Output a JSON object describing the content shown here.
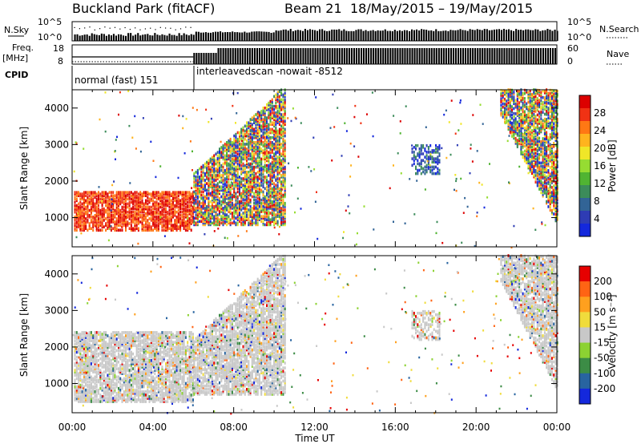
{
  "header": {
    "title": "Buckland Park (fitACF)",
    "beam": "Beam 21",
    "dates": "18/May/2015 – 19/May/2015"
  },
  "noise_panel": {
    "left_label": "N.Sky",
    "right_label": "N.Search",
    "left_ticks": [
      "10^5",
      "10^0"
    ],
    "right_ticks": [
      "10^5",
      "10^0"
    ]
  },
  "freq_panel": {
    "left_label_1": "Freq.",
    "left_label_2": "[MHz]",
    "left_ticks": [
      "18",
      "8"
    ],
    "right_label": "Nave",
    "right_ticks": [
      "60",
      "0"
    ]
  },
  "cpid": {
    "label": "CPID",
    "segments": [
      {
        "text": "normal (fast) 151",
        "start_hour": 0,
        "end_hour": 6
      },
      {
        "text": "interleavedscan -nowait -8512",
        "start_hour": 6,
        "end_hour": 24
      }
    ]
  },
  "x_axis": {
    "label": "Time UT",
    "ticks": [
      "00:00",
      "04:00",
      "08:00",
      "12:00",
      "16:00",
      "20:00",
      "00:00"
    ]
  },
  "chart_data": [
    {
      "type": "heatmap",
      "panel": "power",
      "ylabel": "Slant Range [km]",
      "y_ticks": [
        1000,
        2000,
        3000,
        4000
      ],
      "ylim": [
        200,
        4500
      ],
      "xlim": [
        0,
        24
      ],
      "colorbar_label": "Power [dB]",
      "colorbar_ticks": [
        4,
        8,
        12,
        16,
        20,
        24,
        28
      ],
      "colors": [
        "#1428dc",
        "#2e3cb4",
        "#326496",
        "#3c8c5a",
        "#50b432",
        "#96dc32",
        "#f0e628",
        "#ffb41e",
        "#ff7814",
        "#f03214",
        "#dc0000"
      ],
      "echo_regions": [
        {
          "t0": 0.1,
          "t1": 6.0,
          "r0": 650,
          "r1": 1700,
          "level": "high"
        },
        {
          "t0": 6.0,
          "t1": 10.5,
          "r0": 800,
          "r1": 4500,
          "level": "mixed"
        },
        {
          "t0": 16.8,
          "t1": 18.2,
          "r0": 2200,
          "r1": 3000,
          "level": "low"
        },
        {
          "t0": 21.2,
          "t1": 24.0,
          "r0": 900,
          "r1": 4500,
          "level": "mixed"
        }
      ]
    },
    {
      "type": "heatmap",
      "panel": "velocity",
      "ylabel": "Slant Range [km]",
      "y_ticks": [
        1000,
        2000,
        3000,
        4000
      ],
      "ylim": [
        200,
        4500
      ],
      "xlim": [
        0,
        24
      ],
      "colorbar_label": "Velocity [m s⁻¹]",
      "colorbar_ticks": [
        200,
        100,
        50,
        15,
        -15,
        -50,
        -100,
        -200
      ],
      "colors": [
        "#1428dc",
        "#2864a0",
        "#3c8c46",
        "#8cd232",
        "#c8c8c8",
        "#f0dc3c",
        "#ffa01e",
        "#ff6414",
        "#e60000"
      ],
      "echo_regions": [
        {
          "t0": 0.1,
          "t1": 6.0,
          "r0": 500,
          "r1": 2400,
          "level": "grey"
        },
        {
          "t0": 6.0,
          "t1": 10.5,
          "r0": 700,
          "r1": 4500,
          "level": "grey"
        },
        {
          "t0": 16.8,
          "t1": 18.2,
          "r0": 2200,
          "r1": 3000,
          "level": "grey"
        },
        {
          "t0": 21.2,
          "t1": 24.0,
          "r0": 900,
          "r1": 4500,
          "level": "grey"
        }
      ]
    }
  ]
}
